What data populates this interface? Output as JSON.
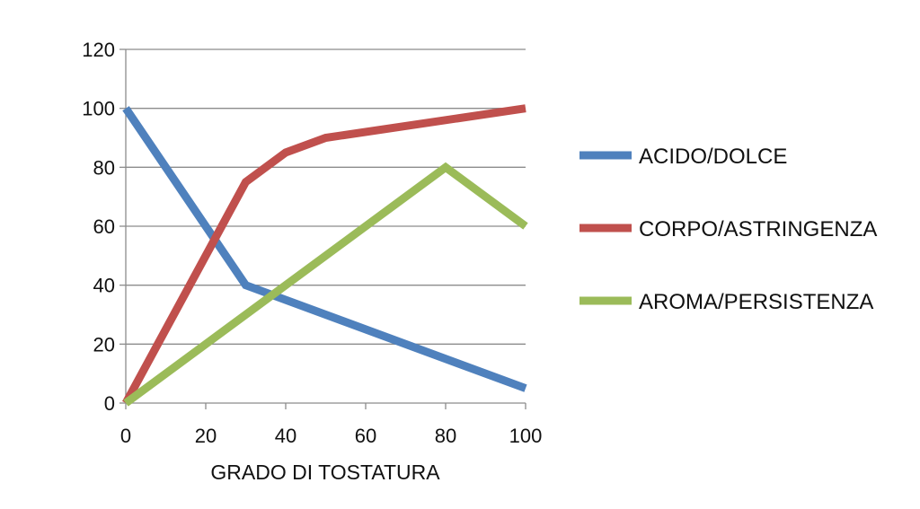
{
  "chart_data": {
    "type": "line",
    "title": "",
    "xlabel": "GRADO DI TOSTATURA",
    "ylabel": "",
    "xlim": [
      0,
      100
    ],
    "ylim": [
      0,
      120
    ],
    "xticks": [
      0,
      20,
      40,
      60,
      80,
      100
    ],
    "yticks": [
      0,
      20,
      40,
      60,
      80,
      100,
      120
    ],
    "grid": "horizontal",
    "legend_position": "right",
    "series": [
      {
        "name": "ACIDO/DOLCE",
        "color": "#4f81bd",
        "x": [
          0,
          30,
          100
        ],
        "y": [
          100,
          40,
          5
        ]
      },
      {
        "name": "CORPO/ASTRINGENZA",
        "color": "#c0504d",
        "x": [
          0,
          30,
          40,
          50,
          100
        ],
        "y": [
          0,
          75,
          85,
          90,
          100
        ]
      },
      {
        "name": "AROMA/PERSISTENZA",
        "color": "#9bbb59",
        "x": [
          0,
          80,
          100
        ],
        "y": [
          0,
          80,
          60
        ]
      }
    ]
  }
}
